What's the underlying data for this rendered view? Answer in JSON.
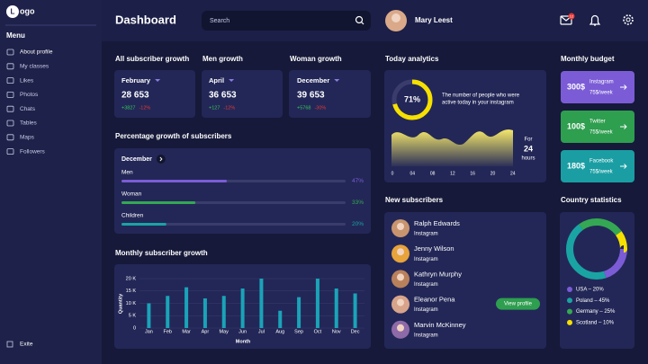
{
  "sidebar": {
    "logo_mark": "L",
    "logo_text": "ogo",
    "menu_title": "Menu",
    "items": [
      "About profile",
      "My classes",
      "Likes",
      "Photos",
      "Chats",
      "Tables",
      "Maps",
      "Followers"
    ],
    "exit": "Exite"
  },
  "header": {
    "title": "Dashboard",
    "search_placeholder": "Search",
    "user_name": "Mary Leest",
    "mail_badge": "12"
  },
  "growth_cards": [
    {
      "title": "All subscriber growth",
      "period": "February",
      "value": "28 653",
      "increase": "+3827",
      "decrease": "-12%"
    },
    {
      "title": "Men growth",
      "period": "April",
      "value": "36 653",
      "increase": "+127",
      "decrease": "-12%"
    },
    {
      "title": "Woman growth",
      "period": "December",
      "value": "39 653",
      "increase": "+5768",
      "decrease": "-30%"
    }
  ],
  "percentage_growth": {
    "title": "Percentage growth of subscribers",
    "period": "December",
    "bars": [
      {
        "label": "Men",
        "value": 47,
        "value_label": "47%",
        "color": "#7b5cd6"
      },
      {
        "label": "Woman",
        "value": 33,
        "value_label": "33%",
        "color": "#34a853"
      },
      {
        "label": "Children",
        "value": 20,
        "value_label": "20%",
        "color": "#1aa3a3"
      }
    ]
  },
  "chart_data": {
    "type": "bar",
    "title": "Monthly subscriber growth",
    "x_label": "Month",
    "y_label": "Quantity",
    "categories": [
      "Jan",
      "Feb",
      "Mar",
      "Apr",
      "May",
      "Jun",
      "Jul",
      "Aug",
      "Sep",
      "Oct",
      "Nov",
      "Dec"
    ],
    "values": [
      10,
      13,
      16.5,
      12,
      13,
      16,
      20,
      7,
      12.5,
      20,
      16,
      14
    ],
    "color": "#1aa3b8",
    "ylim": [
      0,
      20
    ],
    "yticks": [
      0,
      {
        "value": 5,
        "label": "5 K"
      },
      {
        "value": 10,
        "label": "10 K"
      },
      {
        "value": 15,
        "label": "15 K"
      },
      {
        "value": 20,
        "label": "20 K"
      }
    ],
    "grid": true
  },
  "today_analytics": {
    "title": "Today analytics",
    "value": 71,
    "value_label": "71%",
    "color": "#f5e000",
    "description": [
      "The number of people who were",
      "active today in your instagram"
    ],
    "x_labels": [
      "0",
      "04",
      "08",
      "12",
      "16",
      "20",
      "24"
    ],
    "period_prefix": "For",
    "period_value": "24",
    "period_unit": "hours"
  },
  "new_subscribers": {
    "title": "New subscribers",
    "button": "View profile",
    "people": [
      {
        "name": "Ralph Edwards",
        "source": "Instagram"
      },
      {
        "name": "Jenny Wilson",
        "source": "Instagram"
      },
      {
        "name": "Kathryn Murphy",
        "source": "Instagram"
      },
      {
        "name": "Eleanor Pena",
        "source": "Instagram"
      },
      {
        "name": "Marvin McKinney",
        "source": "Instagram"
      }
    ]
  },
  "monthly_budget": {
    "title": "Monthly budget",
    "items": [
      {
        "amount": "300$",
        "platform": "Instagram",
        "rate": "75$/week",
        "color": "#7b5cd6"
      },
      {
        "amount": "100$",
        "platform": "Twitter",
        "rate": "75$/week",
        "color": "#2e9e4f"
      },
      {
        "amount": "180$",
        "platform": "Facebook",
        "rate": "75$/week",
        "color": "#1a9ea3"
      }
    ]
  },
  "country_statistics": {
    "title": "Country statistics",
    "countries": [
      {
        "legend": "USA – 20%",
        "value": 20,
        "color": "#7b5cd6"
      },
      {
        "legend": "Poland – 45%",
        "value": 45,
        "color": "#1aa3a3"
      },
      {
        "legend": "Germany – 25%",
        "value": 25,
        "color": "#34a853"
      },
      {
        "legend": "Scotland – 10%",
        "value": 10,
        "color": "#f5e000"
      }
    ]
  }
}
